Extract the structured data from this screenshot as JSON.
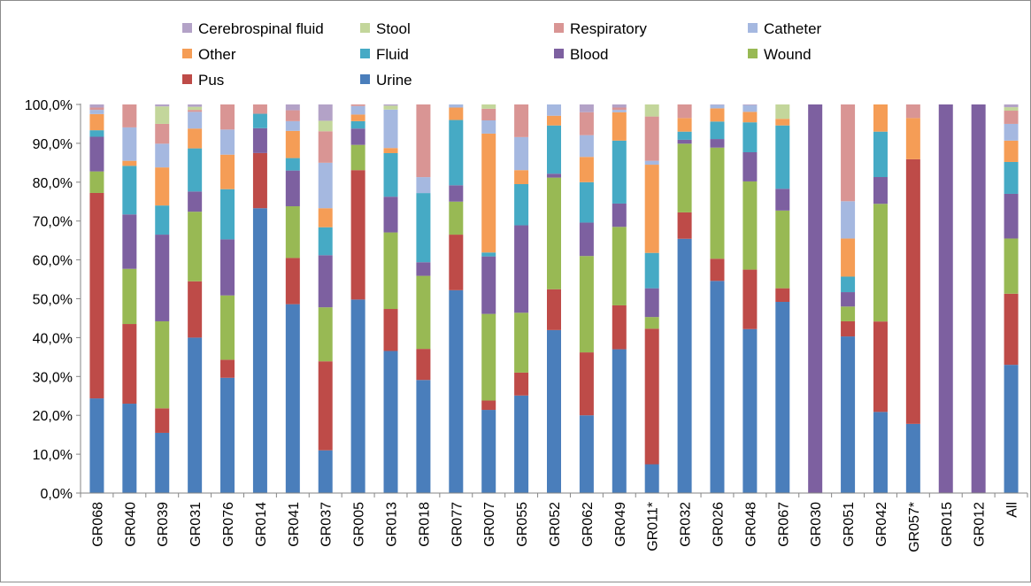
{
  "chart_data": {
    "type": "bar",
    "stacked": true,
    "normalized": true,
    "title": "",
    "xlabel": "",
    "ylabel": "",
    "ylim": [
      0,
      100
    ],
    "ytick_labels": [
      "0,0%",
      "10,0%",
      "20,0%",
      "30,0%",
      "40,0%",
      "50,0%",
      "60,0%",
      "70,0%",
      "80,0%",
      "90,0%",
      "100,0%"
    ],
    "grid": false,
    "legend_position": "top",
    "categories": [
      "GR068",
      "GR040",
      "GR039",
      "GR031",
      "GR076",
      "GR014",
      "GR041",
      "GR037",
      "GR005",
      "GR013",
      "GR018",
      "GR077",
      "GR007",
      "GR055",
      "GR052",
      "GR062",
      "GR049",
      "GR011*",
      "GR032",
      "GR026",
      "GR048",
      "GR067",
      "GR030",
      "GR051",
      "GR042",
      "GR057*",
      "GR015",
      "GR012",
      "All"
    ],
    "series": [
      {
        "name": "Urine",
        "color": "#4a7ebb",
        "values": [
          24.6,
          23.0,
          15.5,
          40.0,
          29.4,
          73.3,
          48.6,
          11.0,
          49.8,
          36.2,
          29.1,
          52.2,
          21.4,
          25.1,
          41.9,
          20.0,
          37.0,
          7.4,
          65.5,
          54.6,
          42.2,
          49.2,
          0,
          40.3,
          20.9,
          17.8,
          0,
          0,
          33.0
        ]
      },
      {
        "name": "Pus",
        "color": "#be4b48",
        "values": [
          53.4,
          20.5,
          6.3,
          14.5,
          4.6,
          14.2,
          11.9,
          22.9,
          33.3,
          10.7,
          8.0,
          14.3,
          2.4,
          5.9,
          10.5,
          16.2,
          11.3,
          34.9,
          6.8,
          5.7,
          15.3,
          3.5,
          0,
          3.9,
          23.3,
          68.1,
          0,
          0,
          18.3
        ]
      },
      {
        "name": "Wound",
        "color": "#98b954",
        "values": [
          5.6,
          14.2,
          22.4,
          17.9,
          16.4,
          0,
          13.3,
          13.9,
          6.5,
          19.5,
          18.8,
          8.5,
          22.3,
          15.4,
          28.7,
          24.8,
          20.2,
          3.0,
          17.7,
          28.6,
          22.7,
          20.0,
          0,
          3.8,
          30.3,
          0,
          0,
          0,
          14.2
        ]
      },
      {
        "name": "Blood",
        "color": "#7d60a0",
        "values": [
          9.0,
          14.0,
          22.3,
          5.2,
          14.3,
          6.4,
          9.2,
          13.4,
          4.2,
          9.1,
          3.5,
          4.2,
          14.8,
          22.5,
          1.0,
          8.6,
          6.0,
          7.4,
          1.0,
          2.2,
          7.5,
          5.6,
          100,
          3.7,
          6.9,
          0,
          100,
          100,
          11.5
        ]
      },
      {
        "name": "Fluid",
        "color": "#46aac5",
        "values": [
          1.7,
          12.5,
          7.5,
          11.1,
          12.8,
          3.7,
          3.2,
          7.2,
          1.9,
          11.1,
          17.8,
          16.8,
          1.0,
          10.6,
          12.4,
          10.4,
          16.2,
          9.1,
          2.1,
          4.5,
          7.7,
          16.3,
          0,
          4.0,
          11.7,
          0,
          0,
          0,
          8.2
        ]
      },
      {
        "name": "Other",
        "color": "#f59d56",
        "values": [
          4.2,
          1.3,
          9.8,
          5.1,
          8.8,
          0,
          7.0,
          4.9,
          1.7,
          1.3,
          0,
          3.2,
          30.6,
          3.6,
          2.5,
          6.5,
          7.3,
          22.7,
          3.5,
          3.4,
          2.7,
          1.7,
          0,
          9.8,
          7.0,
          10.6,
          0,
          0,
          5.5
        ]
      },
      {
        "name": "Catheter",
        "color": "#a5b8e0",
        "values": [
          1.1,
          8.6,
          6.1,
          4.3,
          6.4,
          0,
          2.5,
          11.7,
          2.2,
          9.8,
          4.1,
          0.8,
          3.4,
          8.5,
          2.9,
          5.6,
          0.6,
          1.0,
          0,
          0.9,
          1.7,
          0,
          0,
          9.6,
          0,
          0,
          0,
          0,
          4.3
        ]
      },
      {
        "name": "Respiratory",
        "color": "#d99594",
        "values": [
          0.6,
          5.9,
          5.1,
          0.5,
          6.4,
          2.4,
          2.8,
          8.1,
          0.4,
          0,
          18.7,
          0,
          3.0,
          8.4,
          0,
          5.9,
          0.6,
          11.4,
          3.5,
          0,
          0,
          0,
          0,
          24.9,
          0,
          3.5,
          0,
          0,
          3.4
        ]
      },
      {
        "name": "Stool",
        "color": "#c3d69b",
        "values": [
          0,
          0,
          4.5,
          0.8,
          0,
          0,
          0,
          2.7,
          0,
          1.0,
          0,
          0,
          1.1,
          0,
          0,
          0,
          0,
          3.1,
          0,
          0,
          0,
          3.7,
          0,
          0,
          0,
          0,
          0,
          0,
          0.9
        ]
      },
      {
        "name": "Cerebrospinal fluid",
        "color": "#b3a2c7",
        "values": [
          0.8,
          0,
          0.5,
          0.6,
          0,
          0,
          1.5,
          4.2,
          0,
          0.3,
          0,
          0,
          0,
          0,
          0,
          2.0,
          0.8,
          0,
          0,
          0.1,
          0.2,
          0,
          0,
          0,
          0,
          0,
          0,
          0,
          0.7
        ]
      }
    ],
    "legend": [
      {
        "name": "Cerebrospinal fluid",
        "color": "#b3a2c7"
      },
      {
        "name": "Stool",
        "color": "#c3d69b"
      },
      {
        "name": "Respiratory",
        "color": "#d99594"
      },
      {
        "name": "Catheter",
        "color": "#a5b8e0"
      },
      {
        "name": "Other",
        "color": "#f59d56"
      },
      {
        "name": "Fluid",
        "color": "#46aac5"
      },
      {
        "name": "Blood",
        "color": "#7d60a0"
      },
      {
        "name": "Wound",
        "color": "#98b954"
      },
      {
        "name": "Pus",
        "color": "#be4b48"
      },
      {
        "name": "Urine",
        "color": "#4a7ebb"
      }
    ]
  }
}
